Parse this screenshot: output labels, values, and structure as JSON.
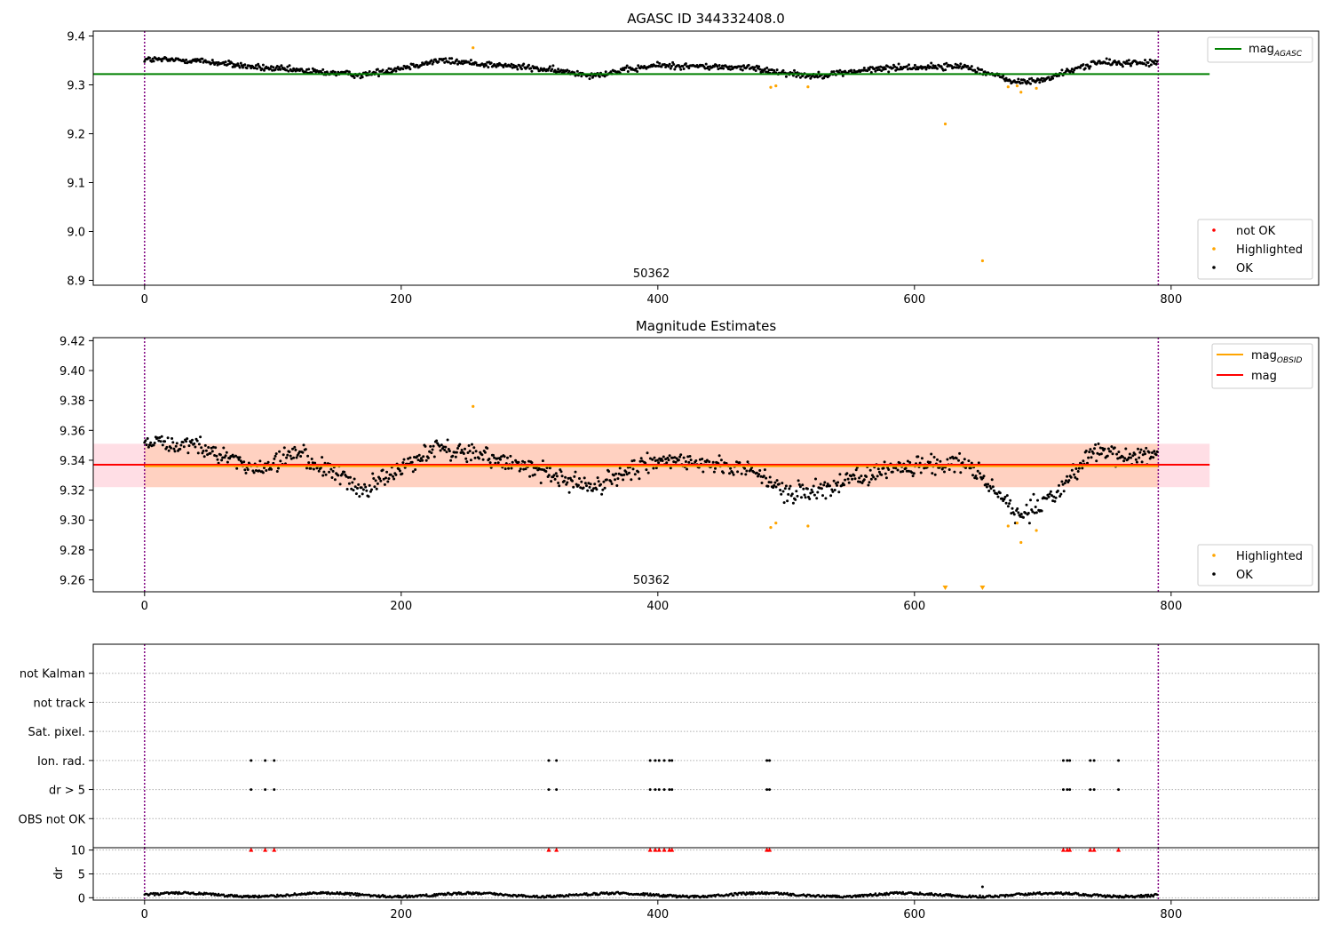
{
  "figure_title": "AGASC ID 344332408.0",
  "colors": {
    "ok": "#000000",
    "highlighted": "#ffa500",
    "not_ok": "#ff0000",
    "mag_agasc_line": "#008000",
    "mag_obsid_line": "#ffa500",
    "mag_line": "#ff0000",
    "obs_boundary": "#800080",
    "band_pink": "#ffd0da",
    "band_orange": "#ffc8a8"
  },
  "chart_data": [
    {
      "id": "agasc",
      "type": "scatter",
      "title": "AGASC ID 344332408.0",
      "xlim": [
        -40,
        915
      ],
      "ylim": [
        8.89,
        9.41
      ],
      "xticks": [
        0,
        200,
        400,
        600,
        800
      ],
      "yticks": [
        8.9,
        9.0,
        9.1,
        9.2,
        9.3,
        9.4
      ],
      "ytick_labels": [
        "8.9",
        "9.0",
        "9.1",
        "9.2",
        "9.3",
        "9.4"
      ],
      "mag_agasc": 9.322,
      "mag_agasc_xrange": [
        -40,
        830
      ],
      "obs_boundaries": [
        0,
        790
      ],
      "obsid_label": "50362",
      "obsid_label_x": 395,
      "series_trend": {
        "x": [
          0,
          40,
          90,
          170,
          230,
          300,
          350,
          400,
          470,
          520,
          580,
          640,
          680,
          700,
          740,
          790
        ],
        "y": [
          9.352,
          9.35,
          9.335,
          9.32,
          9.35,
          9.335,
          9.32,
          9.34,
          9.335,
          9.318,
          9.335,
          9.338,
          9.305,
          9.31,
          9.345,
          9.345
        ],
        "noise": 0.011
      },
      "highlighted_points": {
        "x": [
          256,
          488,
          492,
          517,
          624,
          653,
          673,
          680,
          683,
          695
        ],
        "y": [
          9.376,
          9.295,
          9.298,
          9.296,
          9.22,
          8.94,
          9.296,
          9.298,
          9.285,
          9.293
        ]
      },
      "legend_upper": [
        {
          "label": "mag",
          "subscript": "AGASC",
          "kind": "line",
          "color": "#008000"
        }
      ],
      "legend_lower": [
        {
          "label": "not OK",
          "kind": "dot",
          "color": "#ff0000"
        },
        {
          "label": "Highlighted",
          "kind": "dot",
          "color": "#ffa500"
        },
        {
          "label": "OK",
          "kind": "dot",
          "color": "#000000"
        }
      ]
    },
    {
      "id": "estimates",
      "type": "scatter",
      "title": "Magnitude Estimates",
      "xlim": [
        -40,
        915
      ],
      "ylim": [
        9.252,
        9.422
      ],
      "xticks": [
        0,
        200,
        400,
        600,
        800
      ],
      "yticks": [
        9.26,
        9.28,
        9.3,
        9.32,
        9.34,
        9.36,
        9.38,
        9.4,
        9.42
      ],
      "ytick_labels": [
        "9.26",
        "9.28",
        "9.30",
        "9.32",
        "9.34",
        "9.36",
        "9.38",
        "9.40",
        "9.42"
      ],
      "mag": 9.337,
      "mag_range": [
        -40,
        830
      ],
      "mag_obsid": 9.336,
      "mag_obsid_range": [
        0,
        790
      ],
      "band_pink": [
        9.322,
        9.351
      ],
      "band_orange": [
        9.322,
        9.351
      ],
      "obs_boundaries": [
        0,
        790
      ],
      "obsid_label": "50362",
      "obsid_label_x": 395,
      "series_trend": {
        "x": [
          0,
          40,
          90,
          120,
          170,
          230,
          300,
          350,
          400,
          470,
          500,
          520,
          580,
          640,
          680,
          700,
          740,
          790
        ],
        "y": [
          9.352,
          9.35,
          9.335,
          9.345,
          9.32,
          9.35,
          9.335,
          9.322,
          9.34,
          9.335,
          9.318,
          9.318,
          9.335,
          9.338,
          9.305,
          9.31,
          9.345,
          9.342
        ],
        "noise": 0.011
      },
      "highlighted_points": {
        "x": [
          256,
          488,
          492,
          517,
          673,
          680,
          683,
          695
        ],
        "y": [
          9.376,
          9.295,
          9.298,
          9.296,
          9.296,
          9.298,
          9.285,
          9.293
        ]
      },
      "below_range_markers": {
        "x": [
          624,
          653
        ],
        "color": "#ffa500"
      },
      "legend_upper": [
        {
          "label": "mag",
          "subscript": "OBSID",
          "kind": "line",
          "color": "#ffa500"
        },
        {
          "label": "mag",
          "subscript": "",
          "kind": "line",
          "color": "#ff0000"
        }
      ],
      "legend_lower": [
        {
          "label": "Highlighted",
          "kind": "dot",
          "color": "#ffa500"
        },
        {
          "label": "OK",
          "kind": "dot",
          "color": "#000000"
        }
      ]
    },
    {
      "id": "flags",
      "type": "scatter",
      "title": "",
      "xlim": [
        -40,
        915
      ],
      "categories": [
        "not Kalman",
        "not track",
        "Sat. pixel.",
        "Ion. rad.",
        "dr > 5",
        "OBS not OK"
      ],
      "flag_times": [
        83,
        94,
        101,
        315,
        321,
        394,
        398,
        401,
        405,
        409,
        411,
        485,
        487,
        716,
        719,
        721,
        737,
        740,
        759
      ],
      "flag_rows": [
        "Ion. rad.",
        "dr > 5"
      ],
      "obs_boundaries": [
        0,
        790
      ]
    },
    {
      "id": "dr",
      "type": "line",
      "title": "",
      "xlim": [
        -40,
        915
      ],
      "ylim": [
        -0.5,
        10.5
      ],
      "ylabel": "dr",
      "xticks": [
        0,
        200,
        400,
        600,
        800
      ],
      "yticks": [
        0,
        5,
        10
      ],
      "ytick_labels": [
        "0",
        "5",
        "10"
      ],
      "red_marker_y": 10,
      "red_marker_x": [
        83,
        94,
        101,
        315,
        321,
        394,
        398,
        401,
        405,
        409,
        411,
        485,
        487,
        716,
        719,
        721,
        737,
        740,
        759
      ],
      "outlier": {
        "x": 653,
        "y": 2.3
      },
      "obs_boundaries": [
        0,
        790
      ]
    }
  ]
}
